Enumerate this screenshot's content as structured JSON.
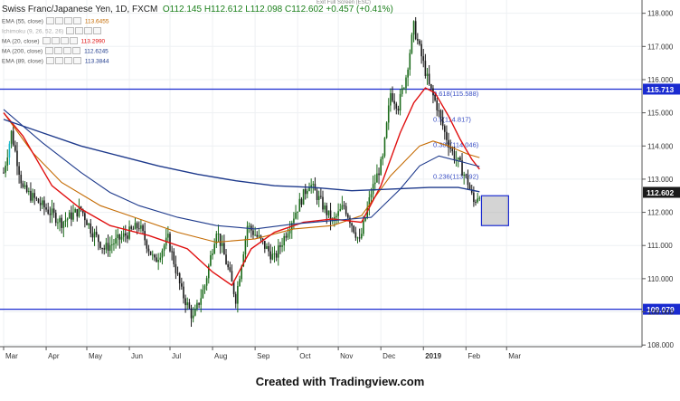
{
  "header": {
    "title": "Swiss Franc/Japanese Yen, 1D, FXCM",
    "ohlc": "O112.145 H112.612 L112.098 C112.602 +0.457 (+0.41%)",
    "exit_fullscreen": "Exit Full Screen (ESC)"
  },
  "indicators": [
    {
      "label": "EMA (55, close)",
      "value": "113.6455",
      "color": "#c46a00"
    },
    {
      "label": "Ichimoku (9, 26, 52, 26)",
      "value": "",
      "color": "#aaaaaa"
    },
    {
      "label": "MA (20, close)",
      "value": "113.2990",
      "color": "#e01010"
    },
    {
      "label": "MA (200, close)",
      "value": "112.6245",
      "color": "#1e3a8c"
    },
    {
      "label": "EMA (89, close)",
      "value": "113.3844",
      "color": "#1e3a8c"
    }
  ],
  "footer": {
    "text": "Created with Tradingview.com"
  },
  "chart_data": {
    "type": "candlestick",
    "symbol": "CHFJPY",
    "timeframe": "1D",
    "x_tick_labels": [
      "Mar",
      "Apr",
      "May",
      "Jun",
      "Jul",
      "Aug",
      "Sep",
      "Oct",
      "Nov",
      "Dec",
      "2019",
      "Feb",
      "Mar"
    ],
    "y_tick_labels": [
      "108.000",
      "109.000",
      "110.000",
      "111.000",
      "112.000",
      "113.000",
      "114.000",
      "115.000",
      "116.000",
      "117.000",
      "118.000"
    ],
    "ylim": [
      107.95,
      118.4
    ],
    "price_path": [
      [
        0,
        113.2
      ],
      [
        4,
        114.4
      ],
      [
        10,
        112.7
      ],
      [
        20,
        112.2
      ],
      [
        30,
        111.7
      ],
      [
        40,
        112.1
      ],
      [
        45,
        111.5
      ],
      [
        52,
        110.9
      ],
      [
        60,
        111.2
      ],
      [
        70,
        111.6
      ],
      [
        78,
        110.5
      ],
      [
        85,
        111.2
      ],
      [
        92,
        109.6
      ],
      [
        98,
        108.8
      ],
      [
        104,
        109.8
      ],
      [
        110,
        111.5
      ],
      [
        116,
        110.3
      ],
      [
        120,
        109.4
      ],
      [
        126,
        111.6
      ],
      [
        132,
        111.2
      ],
      [
        140,
        110.6
      ],
      [
        150,
        111.9
      ],
      [
        158,
        112.9
      ],
      [
        164,
        112.3
      ],
      [
        170,
        111.7
      ],
      [
        176,
        112.2
      ],
      [
        184,
        111.1
      ],
      [
        190,
        112.6
      ],
      [
        196,
        113.6
      ],
      [
        200,
        115.6
      ],
      [
        204,
        115.2
      ],
      [
        208,
        116.1
      ],
      [
        212,
        117.6
      ],
      [
        216,
        116.7
      ],
      [
        220,
        115.8
      ],
      [
        224,
        115.2
      ],
      [
        228,
        114.4
      ],
      [
        232,
        113.8
      ],
      [
        236,
        113.4
      ],
      [
        240,
        112.9
      ],
      [
        243,
        112.3
      ],
      [
        246,
        112.6
      ]
    ],
    "series": [
      {
        "name": "EMA (55, close)",
        "color": "#c46a00",
        "points": [
          [
            0,
            115.0
          ],
          [
            15,
            113.8
          ],
          [
            30,
            112.9
          ],
          [
            50,
            112.2
          ],
          [
            70,
            111.8
          ],
          [
            90,
            111.4
          ],
          [
            110,
            111.1
          ],
          [
            130,
            111.2
          ],
          [
            150,
            111.5
          ],
          [
            170,
            111.6
          ],
          [
            185,
            111.9
          ],
          [
            200,
            113.1
          ],
          [
            215,
            114.0
          ],
          [
            222,
            114.15
          ],
          [
            230,
            114.0
          ],
          [
            240,
            113.75
          ],
          [
            246,
            113.65
          ]
        ]
      },
      {
        "name": "MA (20, close)",
        "color": "#e01010",
        "points": [
          [
            0,
            115.0
          ],
          [
            10,
            114.3
          ],
          [
            25,
            112.8
          ],
          [
            40,
            112.1
          ],
          [
            55,
            111.6
          ],
          [
            75,
            111.3
          ],
          [
            95,
            110.9
          ],
          [
            108,
            110.2
          ],
          [
            118,
            109.8
          ],
          [
            128,
            110.9
          ],
          [
            140,
            111.4
          ],
          [
            155,
            111.7
          ],
          [
            170,
            111.8
          ],
          [
            185,
            111.7
          ],
          [
            195,
            112.8
          ],
          [
            205,
            114.4
          ],
          [
            212,
            115.3
          ],
          [
            218,
            115.75
          ],
          [
            223,
            115.6
          ],
          [
            230,
            114.9
          ],
          [
            236,
            114.2
          ],
          [
            242,
            113.6
          ],
          [
            246,
            113.3
          ]
        ]
      },
      {
        "name": "MA (200, close)",
        "color": "#1e3a8c",
        "points": [
          [
            0,
            114.8
          ],
          [
            20,
            114.4
          ],
          [
            40,
            114.0
          ],
          [
            60,
            113.7
          ],
          [
            80,
            113.4
          ],
          [
            100,
            113.15
          ],
          [
            120,
            112.95
          ],
          [
            140,
            112.8
          ],
          [
            160,
            112.75
          ],
          [
            180,
            112.65
          ],
          [
            200,
            112.7
          ],
          [
            220,
            112.75
          ],
          [
            235,
            112.75
          ],
          [
            246,
            112.62
          ]
        ]
      },
      {
        "name": "EMA (89, close)",
        "color": "#1e3a8c",
        "points": [
          [
            0,
            115.1
          ],
          [
            20,
            114.1
          ],
          [
            40,
            113.2
          ],
          [
            55,
            112.6
          ],
          [
            70,
            112.2
          ],
          [
            90,
            111.85
          ],
          [
            110,
            111.6
          ],
          [
            130,
            111.5
          ],
          [
            150,
            111.65
          ],
          [
            170,
            111.75
          ],
          [
            190,
            111.85
          ],
          [
            205,
            112.7
          ],
          [
            215,
            113.4
          ],
          [
            225,
            113.7
          ],
          [
            235,
            113.55
          ],
          [
            246,
            113.38
          ]
        ]
      }
    ],
    "horizontal_levels": [
      {
        "price": 115.713,
        "label": "115.713",
        "color": "#1a2bd0"
      },
      {
        "price": 109.079,
        "label": "109.079",
        "color": "#1a2bd0"
      }
    ],
    "current_price": {
      "price": 112.602,
      "label": "112.602"
    },
    "fibonacci": [
      {
        "ratio": "0.618",
        "price": 115.588,
        "label": "0.618(115.588)"
      },
      {
        "ratio": "0.5",
        "price": 114.817,
        "label": "0.5(114.817)"
      },
      {
        "ratio": "0.382",
        "price": 114.046,
        "label": "0.382(114.046)"
      },
      {
        "ratio": "0.236",
        "price": 113.092,
        "label": "0.236(113.092)"
      }
    ],
    "target_box": {
      "from_price": 112.5,
      "to_price": 111.6
    }
  }
}
